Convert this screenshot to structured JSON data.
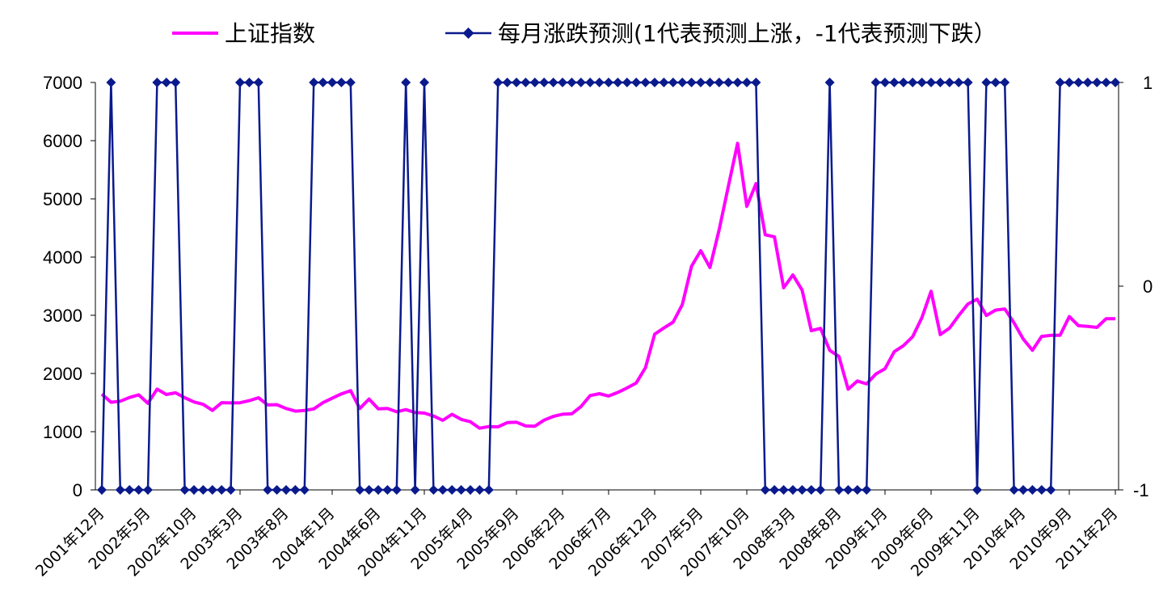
{
  "chart_data": {
    "type": "line",
    "categories_tick_labels": [
      "2001年12月",
      "2002年5月",
      "2002年10月",
      "2003年3月",
      "2003年8月",
      "2004年1月",
      "2004年6月",
      "2004年11月",
      "2005年4月",
      "2005年9月",
      "2006年2月",
      "2006年7月",
      "2006年12月",
      "2007年5月",
      "2007年10月",
      "2008年3月",
      "2008年8月",
      "2009年1月",
      "2009年6月",
      "2009年11月",
      "2010年4月",
      "2010年9月",
      "2011年2月"
    ],
    "start_month": "2001年12月",
    "series": [
      {
        "name": "上证指数",
        "axis": "left",
        "color": "#ff00ff",
        "values": [
          1646,
          1505,
          1524,
          1588,
          1633,
          1488,
          1732,
          1639,
          1668,
          1583,
          1511,
          1470,
          1365,
          1498,
          1495,
          1497,
          1534,
          1583,
          1460,
          1464,
          1398,
          1353,
          1364,
          1392,
          1498,
          1575,
          1650,
          1705,
          1399,
          1561,
          1392,
          1398,
          1342,
          1379,
          1329,
          1320,
          1270,
          1195,
          1299,
          1211,
          1171,
          1060,
          1088,
          1083,
          1156,
          1162,
          1099,
          1095,
          1199,
          1263,
          1300,
          1307,
          1430,
          1621,
          1653,
          1612,
          1675,
          1752,
          1837,
          2099,
          2675,
          2782,
          2882,
          3183,
          3841,
          4110,
          3821,
          4471,
          5218,
          5954,
          4871,
          5262,
          4383,
          4348,
          3472,
          3693,
          3433,
          2736,
          2775,
          2397,
          2293,
          1729,
          1871,
          1821,
          1990,
          2082,
          2373,
          2478,
          2632,
          2959,
          3412,
          2668,
          2779,
          2996,
          3195,
          3277,
          2996,
          3089,
          3109,
          2871,
          2592,
          2398,
          2638,
          2656,
          2656,
          2978,
          2821,
          2808,
          2791,
          2941,
          2941
        ]
      },
      {
        "name": "每月涨跌预测(1代表预测上涨，-1代表预测下跌）",
        "axis": "right",
        "color": "#0a1a8c",
        "values": [
          -1,
          1,
          -1,
          -1,
          -1,
          -1,
          1,
          1,
          1,
          -1,
          -1,
          -1,
          -1,
          -1,
          -1,
          1,
          1,
          1,
          -1,
          -1,
          -1,
          -1,
          -1,
          1,
          1,
          1,
          1,
          1,
          -1,
          -1,
          -1,
          -1,
          -1,
          1,
          -1,
          1,
          -1,
          -1,
          -1,
          -1,
          -1,
          -1,
          -1,
          1,
          1,
          1,
          1,
          1,
          1,
          1,
          1,
          1,
          1,
          1,
          1,
          1,
          1,
          1,
          1,
          1,
          1,
          1,
          1,
          1,
          1,
          1,
          1,
          1,
          1,
          1,
          1,
          1,
          -1,
          -1,
          -1,
          -1,
          -1,
          -1,
          -1,
          1,
          -1,
          -1,
          -1,
          -1,
          1,
          1,
          1,
          1,
          1,
          1,
          1,
          1,
          1,
          1,
          1,
          -1,
          1,
          1,
          1,
          -1,
          -1,
          -1,
          -1,
          -1,
          1,
          1,
          1,
          1,
          1,
          1,
          1
        ]
      }
    ],
    "y_left": {
      "min": 0,
      "max": 7000,
      "ticks": [
        "0",
        "1000",
        "2000",
        "3000",
        "4000",
        "5000",
        "6000",
        "7000"
      ]
    },
    "y_right": {
      "min": -1,
      "max": 1,
      "ticks": [
        "-1",
        "0",
        "1"
      ]
    },
    "legend_position": "top",
    "grid": false,
    "xlabel": "",
    "ylabel": ""
  }
}
